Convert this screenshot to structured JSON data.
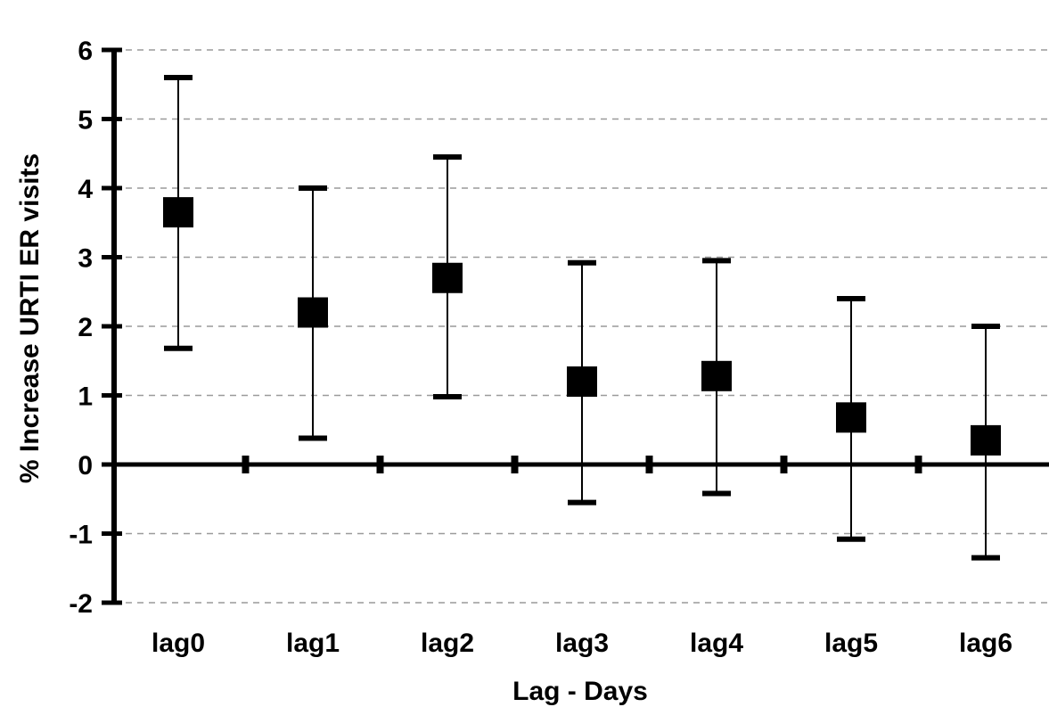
{
  "chart_data": {
    "type": "scatter",
    "title": "",
    "xlabel": "Lag - Days",
    "ylabel": "% Increase URTI ER visits",
    "categories": [
      "lag0",
      "lag1",
      "lag2",
      "lag3",
      "lag4",
      "lag5",
      "lag6"
    ],
    "values": [
      3.65,
      2.2,
      2.7,
      1.2,
      1.28,
      0.68,
      0.35
    ],
    "ci_lower": [
      1.68,
      0.38,
      0.98,
      -0.55,
      -0.42,
      -1.08,
      -1.35
    ],
    "ci_upper": [
      5.6,
      4.0,
      4.45,
      2.92,
      2.95,
      2.4,
      2.0
    ],
    "ylim": [
      -2,
      6
    ],
    "yticks": [
      "-2",
      "-1",
      "0",
      "1",
      "2",
      "3",
      "4",
      "5",
      "6"
    ],
    "grid": "horizontal-dashed",
    "legend": "none",
    "colors": {
      "marker": "#000000",
      "grid": "#9a9a9a",
      "axis": "#000000"
    }
  }
}
